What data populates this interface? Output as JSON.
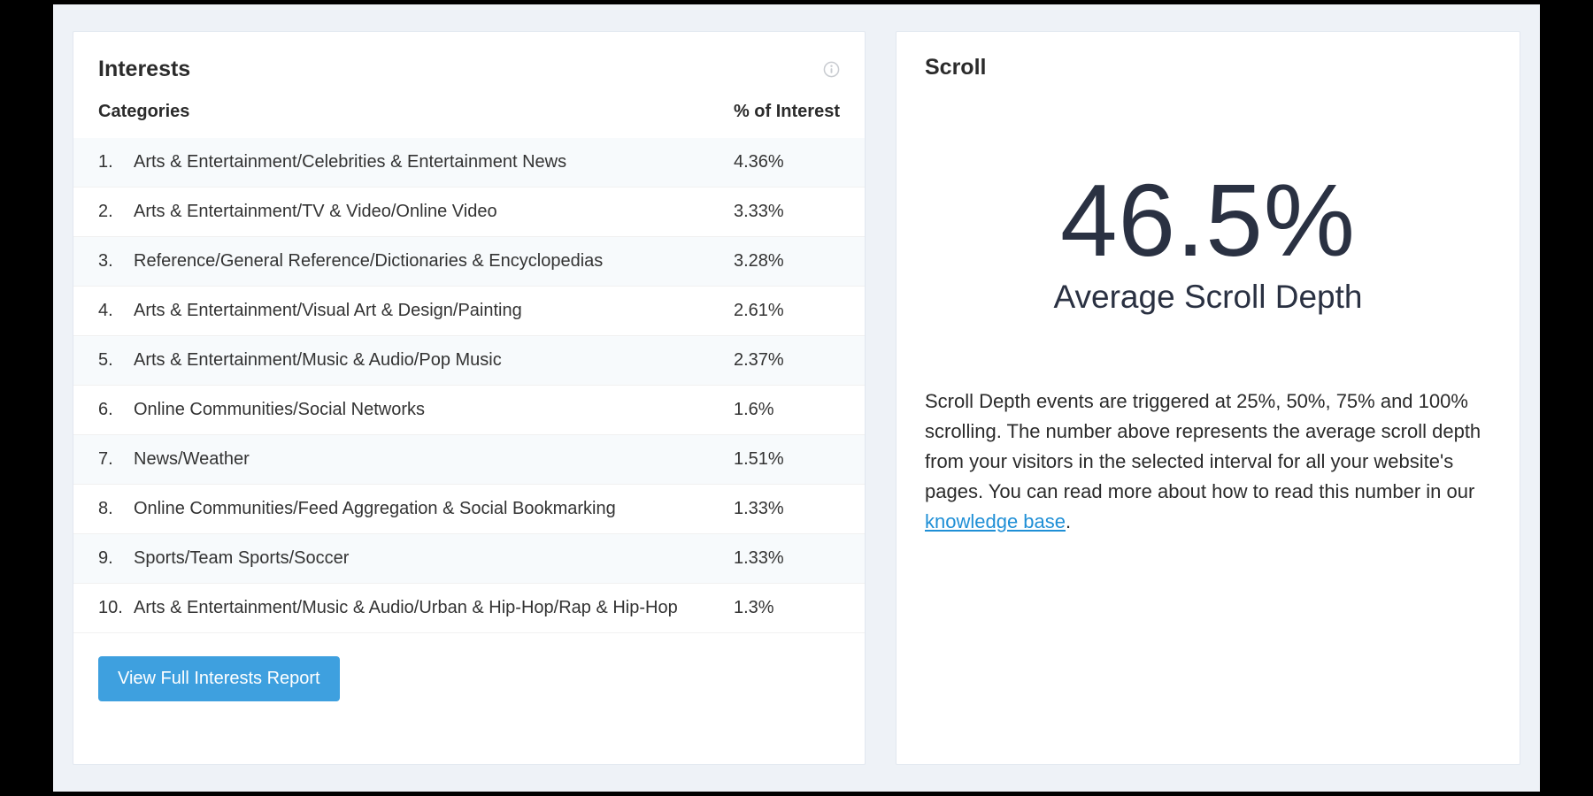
{
  "colors": {
    "outer_bg": "#000000",
    "page_bg": "#eef2f7",
    "card_bg": "#ffffff",
    "card_border": "#e1e7ef",
    "text_primary": "#2b2b2b",
    "text_hero": "#2a3142",
    "row_stripe": "#f7fafc",
    "button_bg": "#3ea0df",
    "button_text": "#ffffff",
    "link": "#1f8fd6",
    "info_icon": "#c9ccd1"
  },
  "interests": {
    "title": "Interests",
    "columns": {
      "categories": "Categories",
      "percent": "% of Interest"
    },
    "rows": [
      {
        "rank": "1.",
        "category": "Arts & Entertainment/Celebrities & Entertainment News",
        "percent": "4.36%"
      },
      {
        "rank": "2.",
        "category": "Arts & Entertainment/TV & Video/Online Video",
        "percent": "3.33%"
      },
      {
        "rank": "3.",
        "category": "Reference/General Reference/Dictionaries & Encyclopedias",
        "percent": "3.28%"
      },
      {
        "rank": "4.",
        "category": "Arts & Entertainment/Visual Art & Design/Painting",
        "percent": "2.61%"
      },
      {
        "rank": "5.",
        "category": "Arts & Entertainment/Music & Audio/Pop Music",
        "percent": "2.37%"
      },
      {
        "rank": "6.",
        "category": "Online Communities/Social Networks",
        "percent": "1.6%"
      },
      {
        "rank": "7.",
        "category": "News/Weather",
        "percent": "1.51%"
      },
      {
        "rank": "8.",
        "category": "Online Communities/Feed Aggregation & Social Bookmarking",
        "percent": "1.33%"
      },
      {
        "rank": "9.",
        "category": "Sports/Team Sports/Soccer",
        "percent": "1.33%"
      },
      {
        "rank": "10.",
        "category": "Arts & Entertainment/Music & Audio/Urban & Hip-Hop/Rap & Hip-Hop",
        "percent": "1.3%"
      }
    ],
    "button_label": "View Full Interests Report"
  },
  "scroll": {
    "title": "Scroll",
    "value": "46.5%",
    "subtitle": "Average Scroll Depth",
    "description_pre": "Scroll Depth events are triggered at 25%, 50%, 75% and 100% scrolling. The number above represents the average scroll depth from your visitors in the selected interval for all your website's pages. You can read more about how to read this number in our ",
    "link_text": "knowledge base",
    "description_post": "."
  }
}
